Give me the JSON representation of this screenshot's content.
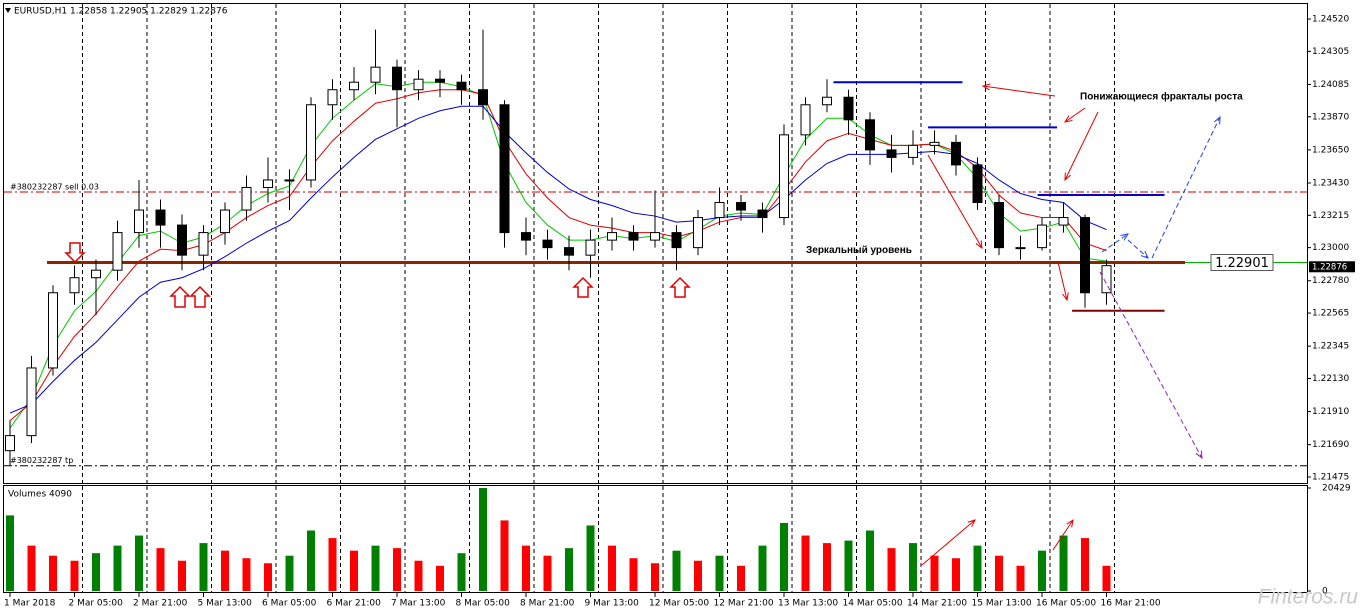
{
  "chart_data": [
    {
      "type": "candlestick",
      "title": "EURUSD,H1  1.22858 1.22905 1.22829 1.22876",
      "categories": [
        "1 Mar 2018",
        null,
        null,
        "2 Mar 05:00",
        null,
        null,
        "2 Mar 21:00",
        null,
        null,
        "5 Mar 13:00",
        null,
        null,
        "6 Mar 05:00",
        null,
        null,
        "6 Mar 21:00",
        null,
        null,
        "7 Mar 13:00",
        null,
        null,
        "8 Mar 05:00",
        null,
        null,
        "8 Mar 21:00",
        null,
        null,
        "9 Mar 13:00",
        null,
        null,
        "12 Mar 05:00",
        null,
        null,
        "12 Mar 21:00",
        null,
        null,
        "13 Mar 13:00",
        null,
        null,
        "14 Mar 05:00",
        null,
        null,
        "14 Mar 21:00",
        null,
        null,
        "15 Mar 13:00",
        null,
        null,
        "16 Mar 05:00",
        null,
        null,
        "16 Mar 21:00"
      ],
      "open": [
        1.2165,
        1.2175,
        1.222,
        1.227,
        1.228,
        1.2285,
        1.231,
        1.2325,
        1.2315,
        1.2295,
        1.231,
        1.2325,
        1.234,
        1.2345,
        1.2345,
        1.2395,
        1.2405,
        1.241,
        1.242,
        1.2405,
        1.2412,
        1.241,
        1.2405,
        1.2395,
        1.231,
        1.2305,
        1.23,
        1.2295,
        1.2305,
        1.231,
        1.2305,
        1.231,
        1.23,
        1.232,
        1.233,
        1.2325,
        1.232,
        1.2375,
        1.2395,
        1.24,
        1.2385,
        1.2365,
        1.236,
        1.2368,
        1.237,
        1.2355,
        1.233,
        1.23,
        1.23,
        1.2315,
        1.232,
        1.227
      ],
      "high": [
        1.2185,
        1.2228,
        1.2275,
        1.2288,
        1.2292,
        1.2318,
        1.2345,
        1.2332,
        1.2322,
        1.2315,
        1.233,
        1.2348,
        1.236,
        1.2352,
        1.24,
        1.2412,
        1.242,
        1.2445,
        1.2425,
        1.2418,
        1.2418,
        1.2415,
        1.2445,
        1.2398,
        1.232,
        1.2312,
        1.2308,
        1.2312,
        1.232,
        1.2315,
        1.2338,
        1.2315,
        1.2325,
        1.234,
        1.2335,
        1.233,
        1.2382,
        1.24,
        1.2412,
        1.2405,
        1.239,
        1.2375,
        1.2378,
        1.2378,
        1.2375,
        1.236,
        1.2335,
        1.2308,
        1.232,
        1.233,
        1.2322,
        1.2292
      ],
      "low": [
        1.2155,
        1.217,
        1.2215,
        1.2262,
        1.2255,
        1.2278,
        1.23,
        1.23,
        1.2285,
        1.2285,
        1.2302,
        1.2318,
        1.233,
        1.2325,
        1.234,
        1.2385,
        1.2398,
        1.2402,
        1.238,
        1.2398,
        1.24,
        1.2395,
        1.2385,
        1.23,
        1.2295,
        1.2292,
        1.2285,
        1.228,
        1.2298,
        1.2298,
        1.23,
        1.2285,
        1.2295,
        1.2315,
        1.2318,
        1.231,
        1.2315,
        1.2368,
        1.239,
        1.2375,
        1.2355,
        1.235,
        1.2355,
        1.2362,
        1.2348,
        1.2325,
        1.2295,
        1.2292,
        1.2298,
        1.231,
        1.226,
        1.2262
      ],
      "close": [
        1.2175,
        1.222,
        1.227,
        1.228,
        1.2285,
        1.231,
        1.2325,
        1.2315,
        1.2295,
        1.231,
        1.2325,
        1.234,
        1.2345,
        1.2345,
        1.2395,
        1.2405,
        1.241,
        1.242,
        1.2405,
        1.2412,
        1.241,
        1.2405,
        1.2395,
        1.231,
        1.2305,
        1.23,
        1.2295,
        1.2305,
        1.231,
        1.2305,
        1.231,
        1.23,
        1.232,
        1.233,
        1.2325,
        1.232,
        1.2375,
        1.2395,
        1.24,
        1.2385,
        1.2365,
        1.236,
        1.2368,
        1.237,
        1.2355,
        1.233,
        1.23,
        1.23,
        1.2315,
        1.232,
        1.227,
        1.2288
      ],
      "up_color": "#ffffff",
      "down_color": "#000000",
      "indicators": [
        {
          "color": "#00c800",
          "values": [
            1.218,
            1.22,
            1.2235,
            1.2258,
            1.2271,
            1.229,
            1.2308,
            1.2311,
            1.2303,
            1.2307,
            1.2316,
            1.2328,
            1.2336,
            1.2341,
            1.2368,
            1.2386,
            1.2398,
            1.2409,
            1.2407,
            1.241,
            1.241,
            1.2407,
            1.2401,
            1.2356,
            1.233,
            1.2315,
            1.2305,
            1.2305,
            1.2308,
            1.2306,
            1.2308,
            1.2304,
            1.2312,
            1.2321,
            1.2323,
            1.2322,
            1.2348,
            1.2372,
            1.2386,
            1.2386,
            1.2375,
            1.2368,
            1.2368,
            1.2369,
            1.2362,
            1.2346,
            1.2323,
            1.2311,
            1.2313,
            1.2317,
            1.2293,
            1.2291
          ]
        },
        {
          "color": "#e00000",
          "values": [
            1.2185,
            1.2197,
            1.2221,
            1.2241,
            1.2256,
            1.2274,
            1.2291,
            1.2299,
            1.2298,
            1.2302,
            1.231,
            1.232,
            1.2328,
            1.2334,
            1.2354,
            1.2371,
            1.2384,
            1.2396,
            1.2399,
            1.2403,
            1.2405,
            1.2405,
            1.2402,
            1.2371,
            1.2349,
            1.2333,
            1.232,
            1.2315,
            1.2313,
            1.231,
            1.231,
            1.2307,
            1.2311,
            1.2317,
            1.232,
            1.232,
            1.2338,
            1.2357,
            1.2371,
            1.2376,
            1.2372,
            1.2368,
            1.2368,
            1.2369,
            1.2364,
            1.2353,
            1.2335,
            1.2323,
            1.232,
            1.232,
            1.2303,
            1.2298
          ]
        },
        {
          "color": "#0000c8",
          "values": [
            1.219,
            1.2196,
            1.2211,
            1.2225,
            1.2237,
            1.2252,
            1.2267,
            1.2277,
            1.228,
            1.2286,
            1.2294,
            1.2303,
            1.2311,
            1.2318,
            1.2333,
            1.2347,
            1.236,
            1.2372,
            1.2379,
            1.2386,
            1.2391,
            1.2394,
            1.2394,
            1.2377,
            1.2363,
            1.235,
            1.2339,
            1.2332,
            1.2328,
            1.2323,
            1.2321,
            1.2317,
            1.2318,
            1.232,
            1.2321,
            1.2321,
            1.2332,
            1.2345,
            1.2356,
            1.2362,
            1.2362,
            1.2362,
            1.2363,
            1.2364,
            1.2362,
            1.2356,
            1.2345,
            1.2336,
            1.2332,
            1.233,
            1.2318,
            1.2312
          ]
        }
      ],
      "levels": [
        {
          "label": "#380232287 sell 0.03",
          "value": 1.2337,
          "color": "#c00000"
        },
        {
          "label": "#380232287 tp",
          "value": 1.2155,
          "color": "#000000"
        }
      ],
      "mirror_level": {
        "label": "Зеркальный уровень",
        "value": 1.22901,
        "color": "#8b2500"
      },
      "fractal_levels": [
        {
          "value": 1.241,
          "from": 38.3,
          "to": 44.3,
          "color": "#0000c8"
        },
        {
          "value": 1.238,
          "from": 42.7,
          "to": 48.7,
          "color": "#0000c8"
        },
        {
          "value": 1.2335,
          "from": 47.8,
          "to": 53.7,
          "color": "#0000c8"
        },
        {
          "value": 1.2258,
          "from": 49.4,
          "to": 53.7,
          "color": "#800000"
        }
      ],
      "annotation": "Понижающиеся фракталы роста",
      "bid": 1.22876,
      "ylim": [
        1.21435,
        1.2462
      ],
      "yticks": [
        {
          "value": 1.2452,
          "label": "1.24520"
        },
        1.24305,
        1.24085,
        {
          "value": 1.2387,
          "label": "1.23870"
        },
        {
          "value": 1.2365,
          "label": "1.23650"
        },
        {
          "value": 1.2343,
          "label": "1.23430"
        },
        1.23215,
        {
          "value": 1.23,
          "label": "1.23000"
        },
        {
          "value": 1.2278,
          "label": "1.22780"
        },
        1.22565,
        1.22345,
        {
          "value": 1.2213,
          "label": "1.22130"
        },
        {
          "value": 1.2191,
          "label": "1.21910"
        },
        {
          "value": 1.2169,
          "label": "1.21690"
        },
        1.21475
      ]
    },
    {
      "type": "volume",
      "title": "Volumes 4090",
      "values": [
        15000,
        9000,
        7000,
        6000,
        7500,
        9000,
        11000,
        8500,
        6000,
        9500,
        8000,
        6500,
        5500,
        7000,
        12000,
        10500,
        8000,
        9000,
        8500,
        6000,
        5000,
        7500,
        20429,
        14000,
        9000,
        7000,
        8500,
        13000,
        9000,
        6500,
        5500,
        8000,
        6000,
        7000,
        5000,
        9000,
        13500,
        11000,
        9500,
        10000,
        12000,
        8500,
        9500,
        7000,
        6500,
        9000,
        7000,
        5000,
        8000,
        11000,
        10500,
        5000
      ],
      "up_color": "#008000",
      "down_color": "#ff0000",
      "ylim": [
        0,
        20429
      ],
      "yticks": [
        0,
        20429
      ]
    }
  ],
  "watermark": "Finteros.ru"
}
